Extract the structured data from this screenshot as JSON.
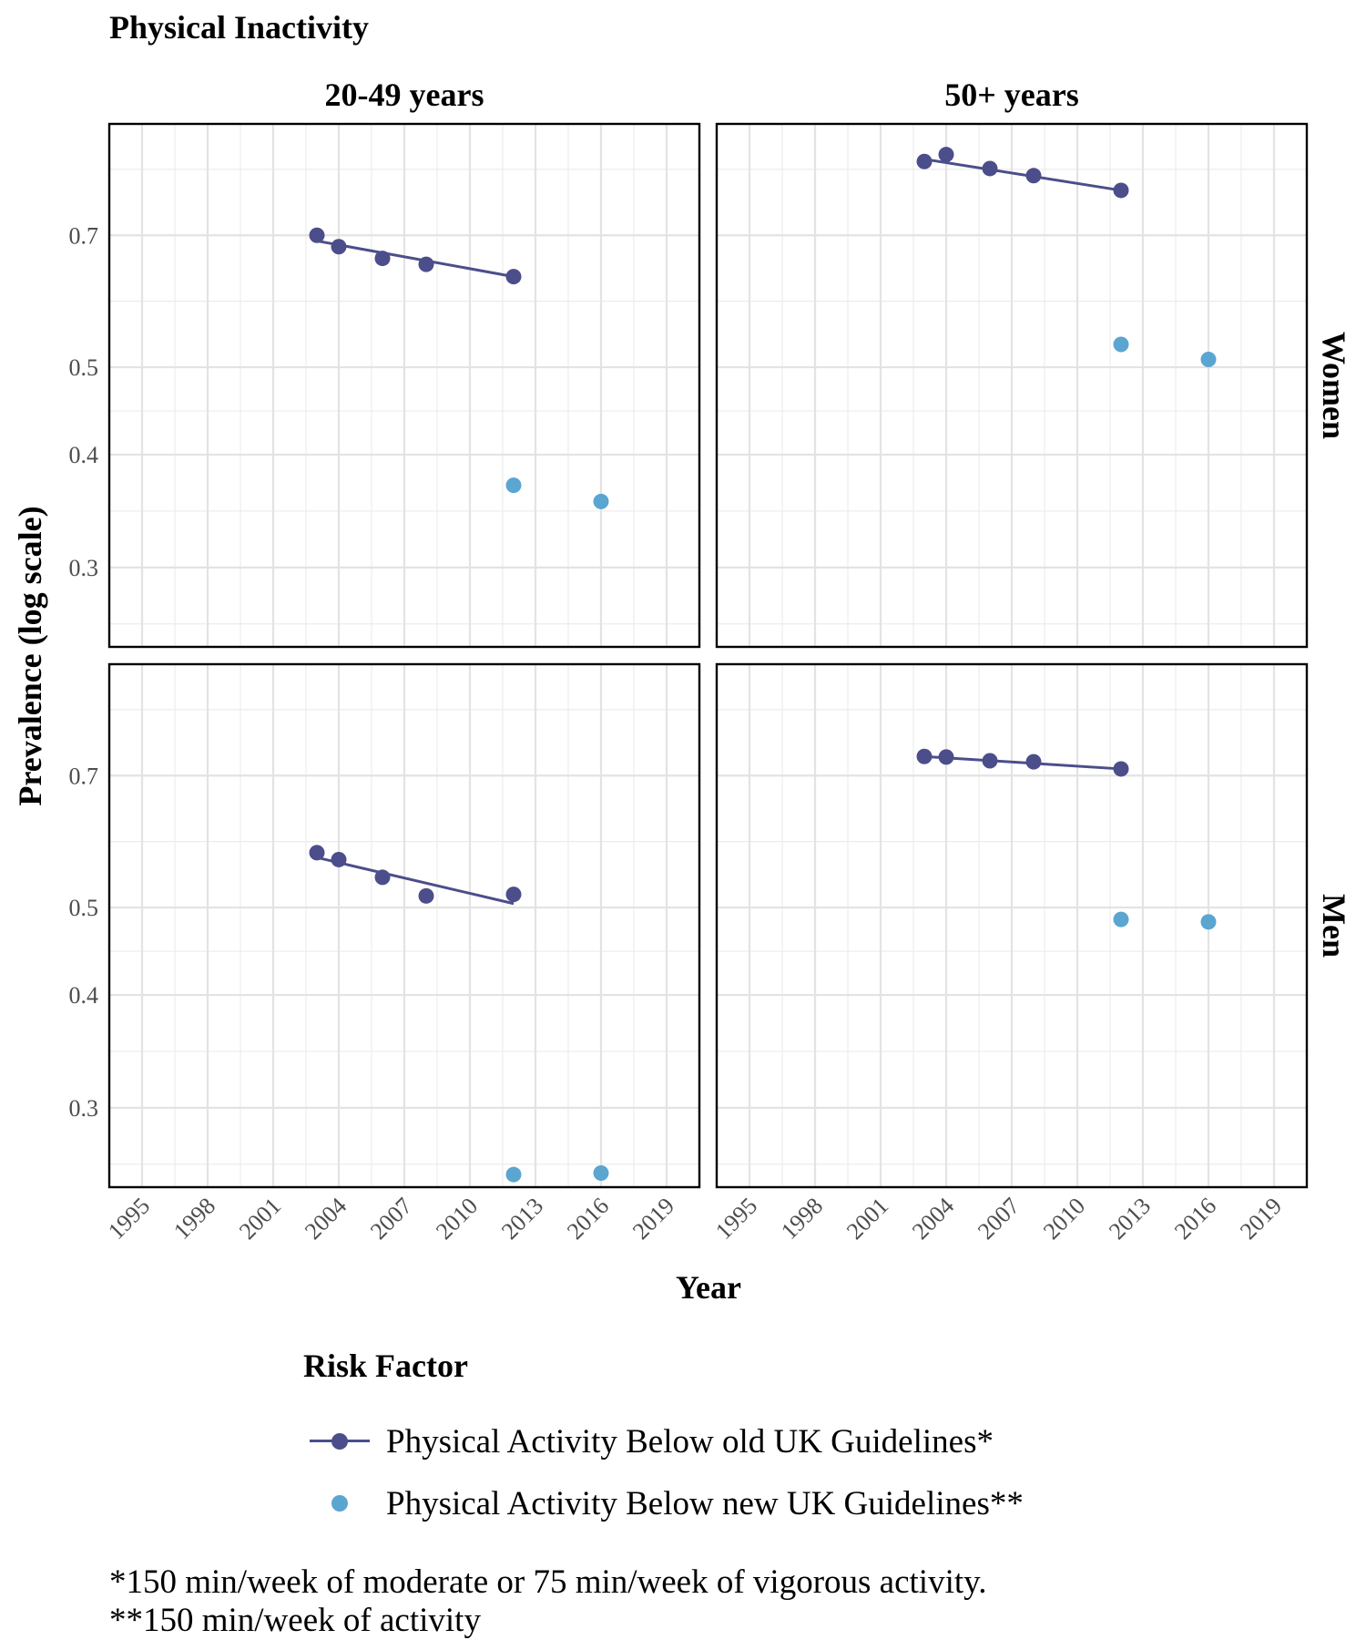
{
  "chart_data": {
    "type": "scatter",
    "title": "Physical Inactivity",
    "xlabel": "Year",
    "ylabel": "Prevalence (log scale)",
    "y_scale": "log",
    "xlim": [
      1993.5,
      2020.5
    ],
    "ylim": [
      0.245,
      0.93
    ],
    "x_ticks": [
      1995,
      1998,
      2001,
      2004,
      2007,
      2010,
      2013,
      2016,
      2019
    ],
    "y_ticks": [
      0.3,
      0.4,
      0.5,
      0.7
    ],
    "grid": true,
    "legend_title": "Risk Factor",
    "legend_position": "bottom",
    "column_labels": [
      "20-49 years",
      "50+ years"
    ],
    "row_labels": [
      "Women",
      "Men"
    ],
    "series_styles": [
      {
        "name": "Physical Activity Below old UK Guidelines*",
        "color": "#4b4e8a",
        "line": true
      },
      {
        "name": "Physical Activity Below new UK Guidelines**",
        "color": "#5ba5d1",
        "line": false
      }
    ],
    "panels": [
      {
        "column": "20-49 years",
        "row": "Women",
        "series": [
          {
            "name": "Physical Activity Below old UK Guidelines*",
            "x": [
              2003,
              2004,
              2006,
              2008,
              2012
            ],
            "y": [
              0.7,
              0.68,
              0.66,
              0.65,
              0.63
            ],
            "fit": [
              [
                2003,
                0.69
              ],
              [
                2012,
                0.63
              ]
            ]
          },
          {
            "name": "Physical Activity Below new UK Guidelines**",
            "x": [
              2012,
              2016
            ],
            "y": [
              0.37,
              0.355
            ],
            "fit": null
          }
        ]
      },
      {
        "column": "50+ years",
        "row": "Women",
        "series": [
          {
            "name": "Physical Activity Below old UK Guidelines*",
            "x": [
              2003,
              2004,
              2006,
              2008,
              2012
            ],
            "y": [
              0.845,
              0.86,
              0.83,
              0.815,
              0.785
            ],
            "fit": [
              [
                2003,
                0.85
              ],
              [
                2012,
                0.785
              ]
            ]
          },
          {
            "name": "Physical Activity Below new UK Guidelines**",
            "x": [
              2012,
              2016
            ],
            "y": [
              0.53,
              0.51
            ],
            "fit": null
          }
        ]
      },
      {
        "column": "20-49 years",
        "row": "Men",
        "series": [
          {
            "name": "Physical Activity Below old UK Guidelines*",
            "x": [
              2003,
              2004,
              2006,
              2008,
              2012
            ],
            "y": [
              0.575,
              0.565,
              0.54,
              0.515,
              0.517
            ],
            "fit": [
              [
                2003,
                0.568
              ],
              [
                2012,
                0.505
              ]
            ]
          },
          {
            "name": "Physical Activity Below new UK Guidelines**",
            "x": [
              2012,
              2016
            ],
            "y": [
              0.253,
              0.254
            ],
            "fit": null
          }
        ]
      },
      {
        "column": "50+ years",
        "row": "Men",
        "series": [
          {
            "name": "Physical Activity Below old UK Guidelines*",
            "x": [
              2003,
              2004,
              2006,
              2008,
              2012
            ],
            "y": [
              0.735,
              0.734,
              0.727,
              0.725,
              0.712
            ],
            "fit": [
              [
                2003,
                0.735
              ],
              [
                2012,
                0.712
              ]
            ]
          },
          {
            "name": "Physical Activity Below new UK Guidelines**",
            "x": [
              2012,
              2016
            ],
            "y": [
              0.485,
              0.482
            ],
            "fit": null
          }
        ]
      }
    ]
  },
  "footnotes": [
    "*150 min/week of moderate or 75 min/week of vigorous activity.",
    "**150 min/week of activity"
  ]
}
